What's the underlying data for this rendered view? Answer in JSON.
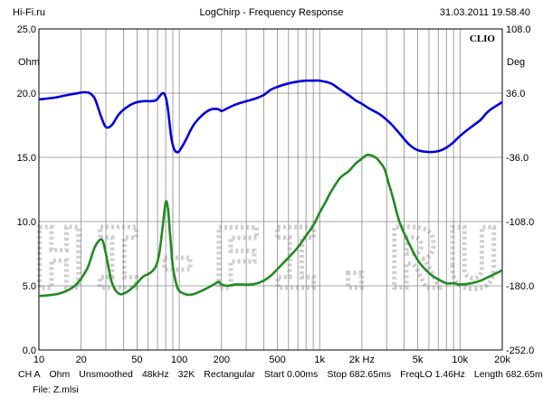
{
  "header": {
    "left": "Hi-Fi.ru",
    "center": "LogChirp - Frequency Response",
    "right": "31.03.2011 19.58.40"
  },
  "brand": "CLIO",
  "watermark": "HI-FI.RU",
  "footer": {
    "row1": [
      "CH A",
      "Ohm",
      "Unsmoothed",
      "48kHz",
      "32K",
      "Rectangular",
      "Start 0.00ms",
      "Stop 682.65ms",
      "FreqLO 1.46Hz",
      "Length 682.65ms"
    ],
    "row2": "File: Z.mlsi"
  },
  "chart_data": {
    "type": "line",
    "xscale": "log",
    "xlim": [
      10,
      20000
    ],
    "x_ticks": [
      {
        "v": 10,
        "label": "10"
      },
      {
        "v": 20,
        "label": "20"
      },
      {
        "v": 50,
        "label": "50"
      },
      {
        "v": 100,
        "label": "100"
      },
      {
        "v": 200,
        "label": "200"
      },
      {
        "v": 500,
        "label": "500"
      },
      {
        "v": 1000,
        "label": "1k"
      },
      {
        "v": 2000,
        "label": "2k Hz"
      },
      {
        "v": 5000,
        "label": "5k"
      },
      {
        "v": 10000,
        "label": "10k"
      },
      {
        "v": 20000,
        "label": "20k"
      }
    ],
    "y_left": {
      "unit": "Ohm",
      "ylim": [
        0,
        25
      ],
      "ticks": [
        "0.0",
        "5.0",
        "10.0",
        "15.0",
        "20.0",
        "25.0"
      ]
    },
    "y_right": {
      "unit": "Deg",
      "ylim": [
        -252,
        108
      ],
      "ticks": [
        "-252.0",
        "-180.0",
        "-108.0",
        "-36.0",
        "36.0",
        "108.0"
      ]
    },
    "grid": true,
    "series": [
      {
        "axis": "left",
        "color": "#228B22",
        "x": [
          10,
          14,
          18,
          22,
          25,
          28,
          30,
          33,
          37,
          42,
          48,
          55,
          62,
          68,
          72,
          76,
          80,
          83,
          86,
          90,
          95,
          100,
          115,
          130,
          150,
          170,
          190,
          200,
          220,
          250,
          280,
          320,
          360,
          400,
          450,
          500,
          600,
          700,
          800,
          900,
          1000,
          1100,
          1200,
          1400,
          1600,
          1800,
          2000,
          2200,
          2500,
          2700,
          2900,
          3100,
          3300,
          3700,
          4200,
          5000,
          6000,
          7000,
          8000,
          9000,
          10000,
          12000,
          14000,
          16000,
          20000
        ],
        "y": [
          4.2,
          4.4,
          5.0,
          6.3,
          8.0,
          8.6,
          7.5,
          5.3,
          4.4,
          4.5,
          5.0,
          5.7,
          6.0,
          6.5,
          7.5,
          9.5,
          11.5,
          11.0,
          9.0,
          6.5,
          5.2,
          4.6,
          4.3,
          4.4,
          4.7,
          5.0,
          5.3,
          5.1,
          5.0,
          5.1,
          5.1,
          5.1,
          5.2,
          5.4,
          5.8,
          6.3,
          7.2,
          8.0,
          8.9,
          9.7,
          10.7,
          11.5,
          12.3,
          13.4,
          13.9,
          14.5,
          14.9,
          15.2,
          15.0,
          14.6,
          14.1,
          13.0,
          12.0,
          10.0,
          8.6,
          7.0,
          6.0,
          5.5,
          5.2,
          5.2,
          5.1,
          5.2,
          5.4,
          5.7,
          6.2
        ]
      },
      {
        "axis": "right",
        "color": "#0000DD",
        "x": [
          10,
          13,
          16,
          19,
          21,
          23,
          25,
          27,
          28,
          30,
          33,
          37,
          42,
          48,
          55,
          62,
          68,
          72,
          76,
          79,
          82,
          85,
          88,
          92,
          96,
          100,
          110,
          120,
          130,
          150,
          170,
          190,
          200,
          220,
          250,
          300,
          350,
          400,
          450,
          500,
          600,
          700,
          800,
          900,
          1000,
          1200,
          1400,
          1600,
          1800,
          2000,
          2300,
          2700,
          3200,
          3700,
          4300,
          5000,
          6000,
          7000,
          8000,
          9000,
          10000,
          12000,
          14000,
          16000,
          20000
        ],
        "y": [
          29,
          31,
          34,
          36,
          37,
          36,
          30,
          15,
          8,
          -2,
          0,
          12,
          20,
          25,
          27,
          27,
          28,
          32,
          36,
          34,
          24,
          4,
          -15,
          -27,
          -30,
          -29,
          -18,
          -6,
          3,
          13,
          18,
          18,
          16,
          19,
          23,
          27,
          30,
          34,
          40,
          43,
          47,
          49,
          50,
          50,
          50,
          47,
          40,
          34,
          28,
          24,
          18,
          12,
          2,
          -9,
          -21,
          -28,
          -30,
          -29,
          -25,
          -19,
          -12,
          -2,
          6,
          16,
          26
        ]
      }
    ]
  }
}
